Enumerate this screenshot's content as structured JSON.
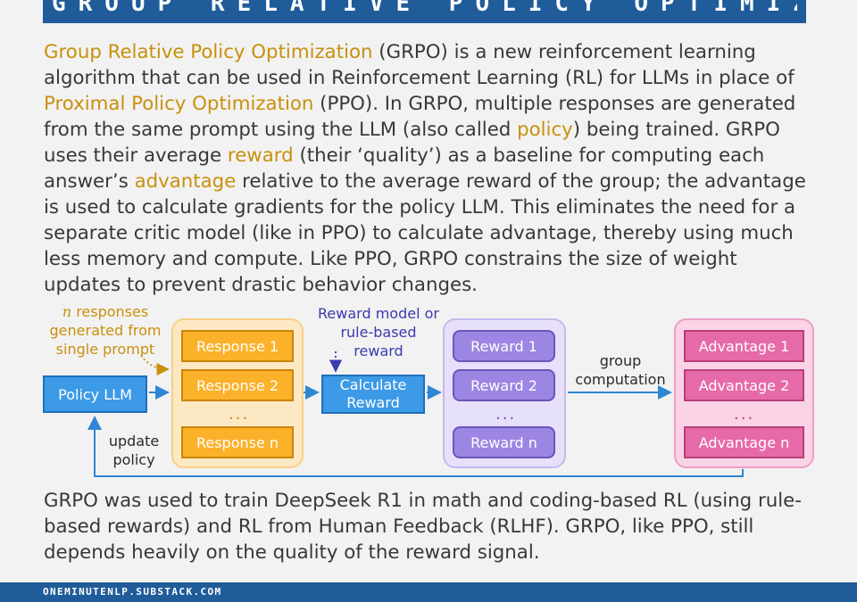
{
  "header": {
    "title": "GROUP RELATIVE POLICY OPTIMIZATION"
  },
  "intro": {
    "s1_hl": "Group Relative Policy Optimization",
    "s2": " (GRPO) is a new reinforcement learning algorithm that can be used in Reinforcement Learning (RL) for LLMs in place of ",
    "s3_hl": "Proximal Policy Optimization",
    "s4": " (PPO). In GRPO, multiple responses are generated from the same prompt using the LLM (also called ",
    "s5_hl": "policy",
    "s6": ") being trained. GRPO uses their average ",
    "s7_hl": "reward",
    "s8": " (their ‘quality’) as a baseline for computing each answer’s ",
    "s9_hl": "advantage",
    "s10": " relative to the average reward of the group; the advantage is used to calculate gradients for the policy LLM. This eliminates the need for a separate critic model (like in PPO) to calculate advantage, thereby using much less memory and compute. Like PPO, GRPO constrains the size of weight updates to prevent drastic behavior changes."
  },
  "diagram": {
    "policy_label": "Policy LLM",
    "n_var": "n",
    "n_label_rest": " responses generated from single prompt",
    "responses": [
      "Response 1",
      "Response 2",
      "Response n"
    ],
    "calc_line1": "Calculate",
    "calc_line2": "Reward",
    "reward_model_label": "Reward model or rule-based reward",
    "rewards": [
      "Reward 1",
      "Reward 2",
      "Reward n"
    ],
    "group_label": "group computation",
    "advantages": [
      "Advantage 1",
      "Advantage 2",
      "Advantage n"
    ],
    "update_label": "update policy",
    "ellipsis": "...",
    "colors": {
      "blue": "#3c9ae6",
      "orange": "#fbb12a",
      "purple": "#9d86e3",
      "pink": "#e66aa7",
      "highlight": "#c8900c"
    }
  },
  "outro": {
    "text": "GRPO was used to train DeepSeek R1 in math and coding-based RL (using rule-based rewards) and RL from Human Feedback (RLHF). GRPO, like PPO, still depends heavily on the quality of the reward signal."
  },
  "footer": {
    "text": "ONEMINUTENLP.SUBSTACK.COM"
  }
}
